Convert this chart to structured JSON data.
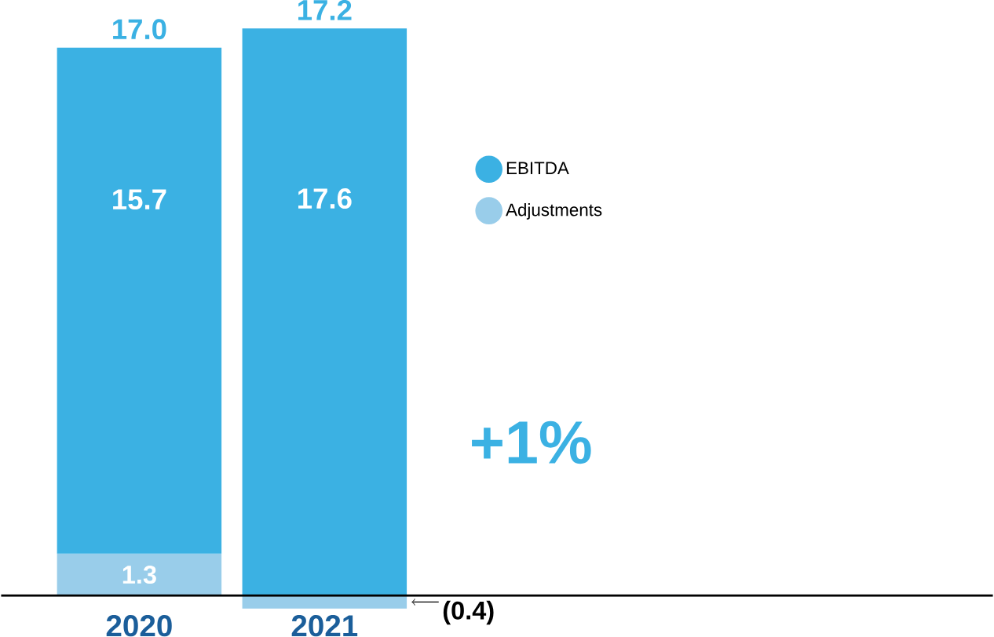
{
  "chart_data": {
    "type": "bar",
    "stacked": true,
    "categories": [
      "2020",
      "2021"
    ],
    "series": [
      {
        "name": "Adjustments",
        "color": "#99cdea",
        "values": [
          1.3,
          -0.4
        ],
        "value_labels": [
          "1.3",
          "(0.4)"
        ]
      },
      {
        "name": "EBITDA",
        "color": "#3bb1e3",
        "values": [
          15.7,
          17.6
        ],
        "value_labels": [
          "15.7",
          "17.6"
        ]
      }
    ],
    "totals": [
      "17.0",
      "17.2"
    ],
    "legend": "right",
    "annotations": [
      "+1%"
    ]
  }
}
